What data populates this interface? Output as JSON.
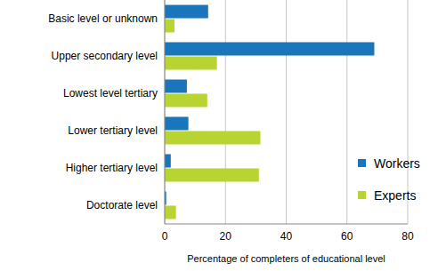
{
  "chart_data": {
    "type": "bar",
    "orientation": "horizontal",
    "categories": [
      "Basic level or unknown",
      "Upper secondary level",
      "Lowest level tertiary",
      "Lower tertiary level",
      "Higher tertiary level",
      "Doctorate level"
    ],
    "series": [
      {
        "name": "Workers",
        "color": "#1b75bb",
        "values": [
          14.3,
          69,
          7.3,
          7.8,
          2,
          0.5
        ]
      },
      {
        "name": "Experts",
        "color": "#b7d433",
        "values": [
          3.2,
          17.2,
          14,
          31.5,
          31,
          3.7
        ]
      }
    ],
    "xlabel": "Percentage of completers of educational level",
    "xlim": [
      0,
      80
    ],
    "xticks": [
      0,
      20,
      40,
      60,
      80
    ],
    "grid": true,
    "legend": "right"
  }
}
